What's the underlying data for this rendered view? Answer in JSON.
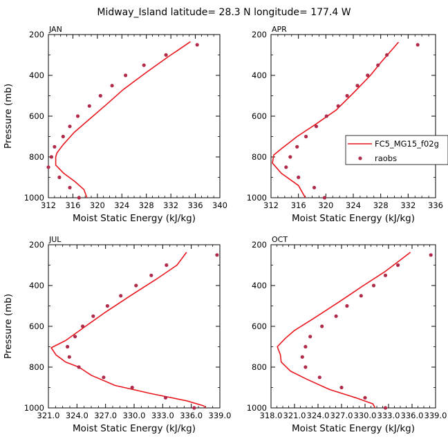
{
  "figure": {
    "title": "Midway_Island   latitude= 28.3 N longitude= 177.4 W",
    "colors": {
      "model": "#e8141c",
      "obs": "#b02a4a",
      "axes": "#000000"
    }
  },
  "legend": {
    "entries": [
      {
        "label": "FC5_MG15_f02g",
        "style": "line"
      },
      {
        "label": "raobs",
        "style": "marker"
      }
    ]
  },
  "chart_data": [
    {
      "type": "line",
      "panel": "JAN",
      "xlabel": "Moist Static Energy (kJ/kg)",
      "ylabel": "Pressure (mb)",
      "xlim": [
        312,
        340
      ],
      "xticks": [
        312,
        316,
        320,
        324,
        328,
        332,
        336,
        340
      ],
      "xticklabels": [
        "312",
        "316",
        "320",
        "324",
        "328",
        "332",
        "336",
        "340"
      ],
      "ylim": [
        1000,
        200
      ],
      "yticks": [
        200,
        400,
        600,
        800,
        1000
      ],
      "yticklabels": [
        "200",
        "400",
        "600",
        "800",
        "1000"
      ],
      "series": [
        {
          "name": "FC5_MG15_f02g",
          "points": [
            [
              318.3,
              1000
            ],
            [
              317.8,
              960
            ],
            [
              316.3,
              920
            ],
            [
              314.5,
              880
            ],
            [
              313.2,
              840
            ],
            [
              313.2,
              800
            ],
            [
              313.4,
              780
            ],
            [
              314.4,
              740
            ],
            [
              316.2,
              680
            ],
            [
              318.5,
              620
            ],
            [
              321.2,
              550
            ],
            [
              324.2,
              470
            ],
            [
              327.8,
              390
            ],
            [
              331.5,
              310
            ],
            [
              335.2,
              235
            ]
          ]
        },
        {
          "name": "raobs",
          "points": [
            [
              317.0,
              1000
            ],
            [
              315.5,
              950
            ],
            [
              313.8,
              900
            ],
            [
              312.0,
              850
            ],
            [
              312.5,
              800
            ],
            [
              313.0,
              750
            ],
            [
              314.4,
              700
            ],
            [
              315.5,
              650
            ],
            [
              316.8,
              600
            ],
            [
              318.7,
              550
            ],
            [
              320.5,
              500
            ],
            [
              322.4,
              450
            ],
            [
              324.6,
              400
            ],
            [
              327.6,
              350
            ],
            [
              331.2,
              300
            ],
            [
              336.3,
              250
            ]
          ]
        }
      ]
    },
    {
      "type": "line",
      "panel": "APR",
      "xlabel": "Moist Static Energy (kJ/kg)",
      "ylabel": "",
      "xlim": [
        312,
        336
      ],
      "xticks": [
        312,
        316,
        320,
        324,
        328,
        332,
        336
      ],
      "xticklabels": [
        "312",
        "316",
        "320",
        "324",
        "328",
        "332",
        "336"
      ],
      "ylim": [
        1000,
        200
      ],
      "yticks": [
        200,
        400,
        600,
        800,
        1000
      ],
      "yticklabels": [
        "200",
        "400",
        "600",
        "800",
        "1000"
      ],
      "series": [
        {
          "name": "FC5_MG15_f02g",
          "points": [
            [
              317.0,
              1000
            ],
            [
              316.0,
              940
            ],
            [
              313.5,
              880
            ],
            [
              312.2,
              830
            ],
            [
              312.4,
              790
            ],
            [
              313.5,
              760
            ],
            [
              315.8,
              700
            ],
            [
              318.5,
              640
            ],
            [
              321.5,
              570
            ],
            [
              324.2,
              480
            ],
            [
              326.5,
              400
            ],
            [
              328.2,
              330
            ],
            [
              329.5,
              280
            ],
            [
              330.6,
              237
            ]
          ]
        },
        {
          "name": "raobs",
          "points": [
            [
              319.8,
              1000
            ],
            [
              318.3,
              950
            ],
            [
              316.0,
              900
            ],
            [
              314.2,
              850
            ],
            [
              314.8,
              800
            ],
            [
              315.8,
              750
            ],
            [
              317.1,
              700
            ],
            [
              318.6,
              650
            ],
            [
              320.1,
              600
            ],
            [
              321.8,
              550
            ],
            [
              323.1,
              500
            ],
            [
              324.6,
              450
            ],
            [
              326.1,
              400
            ],
            [
              327.6,
              350
            ],
            [
              328.9,
              300
            ],
            [
              333.4,
              250
            ]
          ]
        }
      ]
    },
    {
      "type": "line",
      "panel": "JUL",
      "xlabel": "Moist Static Energy (kJ/kg)",
      "ylabel": "Pressure (mb)",
      "xlim": [
        321,
        339
      ],
      "xticks": [
        321,
        324,
        327,
        330,
        333,
        336,
        339
      ],
      "xticklabels": [
        "321.0",
        "324.0",
        "327.0",
        "330.0",
        "333.0",
        "336.0",
        "339.0"
      ],
      "ylim": [
        1000,
        200
      ],
      "yticks": [
        200,
        400,
        600,
        800,
        1000
      ],
      "yticklabels": [
        "200",
        "400",
        "600",
        "800",
        "1000"
      ],
      "series": [
        {
          "name": "FC5_MG15_f02g",
          "points": [
            [
              337.8,
              1015
            ],
            [
              337.3,
              990
            ],
            [
              335.5,
              965
            ],
            [
              331.8,
              930
            ],
            [
              328.0,
              890
            ],
            [
              325.5,
              840
            ],
            [
              324.2,
              800
            ],
            [
              322.8,
              775
            ],
            [
              321.8,
              740
            ],
            [
              321.3,
              705
            ],
            [
              322.8,
              670
            ],
            [
              324.6,
              610
            ],
            [
              327.0,
              530
            ],
            [
              329.6,
              450
            ],
            [
              332.3,
              370
            ],
            [
              334.5,
              300
            ],
            [
              335.5,
              237
            ]
          ]
        },
        {
          "name": "raobs",
          "points": [
            [
              336.3,
              1000
            ],
            [
              333.3,
              950
            ],
            [
              329.8,
              900
            ],
            [
              326.8,
              850
            ],
            [
              324.2,
              800
            ],
            [
              323.2,
              750
            ],
            [
              323.0,
              700
            ],
            [
              323.8,
              650
            ],
            [
              324.6,
              600
            ],
            [
              325.7,
              550
            ],
            [
              327.2,
              500
            ],
            [
              328.6,
              450
            ],
            [
              330.2,
              400
            ],
            [
              331.8,
              350
            ],
            [
              333.4,
              300
            ],
            [
              338.7,
              250
            ]
          ]
        }
      ]
    },
    {
      "type": "line",
      "panel": "OCT",
      "xlabel": "Moist Static Energy (kJ/kg)",
      "ylabel": "",
      "xlim": [
        318,
        339
      ],
      "xticks": [
        318,
        321,
        324,
        327,
        330,
        333,
        336,
        339
      ],
      "xticklabels": [
        "318.0",
        "321.0",
        "324.0",
        "327.0",
        "330.0",
        "333.0",
        "336.0",
        "339.0"
      ],
      "ylim": [
        1000,
        200
      ],
      "yticks": [
        200,
        400,
        600,
        800,
        1000
      ],
      "yticklabels": [
        "200",
        "400",
        "600",
        "800",
        "1000"
      ],
      "series": [
        {
          "name": "FC5_MG15_f02g",
          "points": [
            [
              331.5,
              1015
            ],
            [
              331.0,
              980
            ],
            [
              328.8,
              950
            ],
            [
              325.5,
              910
            ],
            [
              322.6,
              860
            ],
            [
              320.5,
              820
            ],
            [
              319.3,
              775
            ],
            [
              319.2,
              740
            ],
            [
              318.8,
              700
            ],
            [
              319.8,
              660
            ],
            [
              321.0,
              620
            ],
            [
              323.5,
              560
            ],
            [
              326.7,
              480
            ],
            [
              329.8,
              400
            ],
            [
              332.6,
              330
            ],
            [
              334.5,
              275
            ],
            [
              335.8,
              237
            ]
          ]
        },
        {
          "name": "raobs",
          "points": [
            [
              332.6,
              1000
            ],
            [
              330.0,
              950
            ],
            [
              327.0,
              900
            ],
            [
              324.2,
              850
            ],
            [
              322.4,
              800
            ],
            [
              322.0,
              750
            ],
            [
              322.4,
              700
            ],
            [
              323.0,
              650
            ],
            [
              324.5,
              600
            ],
            [
              326.3,
              550
            ],
            [
              327.7,
              500
            ],
            [
              329.5,
              450
            ],
            [
              331.1,
              400
            ],
            [
              332.6,
              350
            ],
            [
              334.2,
              300
            ],
            [
              338.4,
              250
            ]
          ]
        }
      ]
    }
  ]
}
